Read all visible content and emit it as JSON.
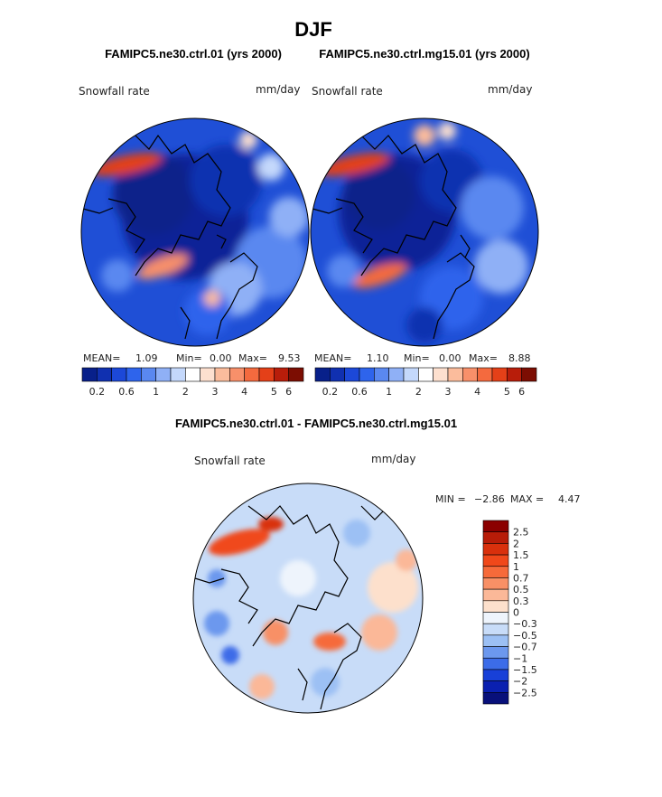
{
  "figure": {
    "title": "DJF",
    "panel_left_title": "FAMIPC5.ne30.ctrl.01 (yrs 2000)",
    "panel_right_title": "FAMIPC5.ne30.ctrl.mg15.01 (yrs 2000)",
    "diff_title": "FAMIPC5.ne30.ctrl.01 - FAMIPC5.ne30.ctrl.mg15.01"
  },
  "chart_data": [
    {
      "type": "heatmap",
      "projection": "polar-stereographic (Arctic)",
      "title": "FAMIPC5.ne30.ctrl.01 (yrs 2000)",
      "variable": "Snowfall rate",
      "units": "mm/day",
      "stats": {
        "mean_label": "MEAN=",
        "mean": "1.09",
        "min_label": "Min=",
        "min": "0.00",
        "max_label": "Max=",
        "max": "9.53"
      },
      "colorbar_ticks": [
        "0.2",
        "0.6",
        "1",
        "2",
        "3",
        "4",
        "5",
        "6"
      ],
      "colorbar_colors": [
        "#08208a",
        "#1030b0",
        "#1c48d8",
        "#2e64ec",
        "#5a88f0",
        "#8fb0f6",
        "#c4d8fb",
        "#ffffff",
        "#fde0cf",
        "#fbbc9c",
        "#f8906a",
        "#f46a3e",
        "#e44018",
        "#b81d0a",
        "#7c0d02"
      ]
    },
    {
      "type": "heatmap",
      "projection": "polar-stereographic (Arctic)",
      "title": "FAMIPC5.ne30.ctrl.mg15.01 (yrs 2000)",
      "variable": "Snowfall rate",
      "units": "mm/day",
      "stats": {
        "mean_label": "MEAN=",
        "mean": "1.10",
        "min_label": "Min=",
        "min": "0.00",
        "max_label": "Max=",
        "max": "8.88"
      },
      "colorbar_ticks": [
        "0.2",
        "0.6",
        "1",
        "2",
        "3",
        "4",
        "5",
        "6"
      ],
      "colorbar_colors": [
        "#08208a",
        "#1030b0",
        "#1c48d8",
        "#2e64ec",
        "#5a88f0",
        "#8fb0f6",
        "#c4d8fb",
        "#ffffff",
        "#fde0cf",
        "#fbbc9c",
        "#f8906a",
        "#f46a3e",
        "#e44018",
        "#b81d0a",
        "#7c0d02"
      ]
    },
    {
      "type": "heatmap",
      "projection": "polar-stereographic (Arctic)",
      "title": "FAMIPC5.ne30.ctrl.01 - FAMIPC5.ne30.ctrl.mg15.01",
      "variable": "Snowfall rate",
      "units": "mm/day",
      "stats": {
        "min_label": "MIN =",
        "min": "−2.86",
        "max_label": "MAX =",
        "max": "4.47"
      },
      "colorbar_ticks": [
        "2.5",
        "2",
        "1.5",
        "1",
        "0.7",
        "0.5",
        "0.3",
        "0",
        "−0.3",
        "−0.5",
        "−0.7",
        "−1",
        "−1.5",
        "−2",
        "−2.5"
      ],
      "colorbar_colors": [
        "#8b0000",
        "#b81c08",
        "#d9300c",
        "#f0481a",
        "#f66a3a",
        "#f89066",
        "#fbb898",
        "#fde0cc",
        "#eef4fc",
        "#c8dcf8",
        "#9cc0f4",
        "#6c98ee",
        "#3c6ce8",
        "#1840d8",
        "#0a20b0",
        "#08107a"
      ]
    }
  ]
}
